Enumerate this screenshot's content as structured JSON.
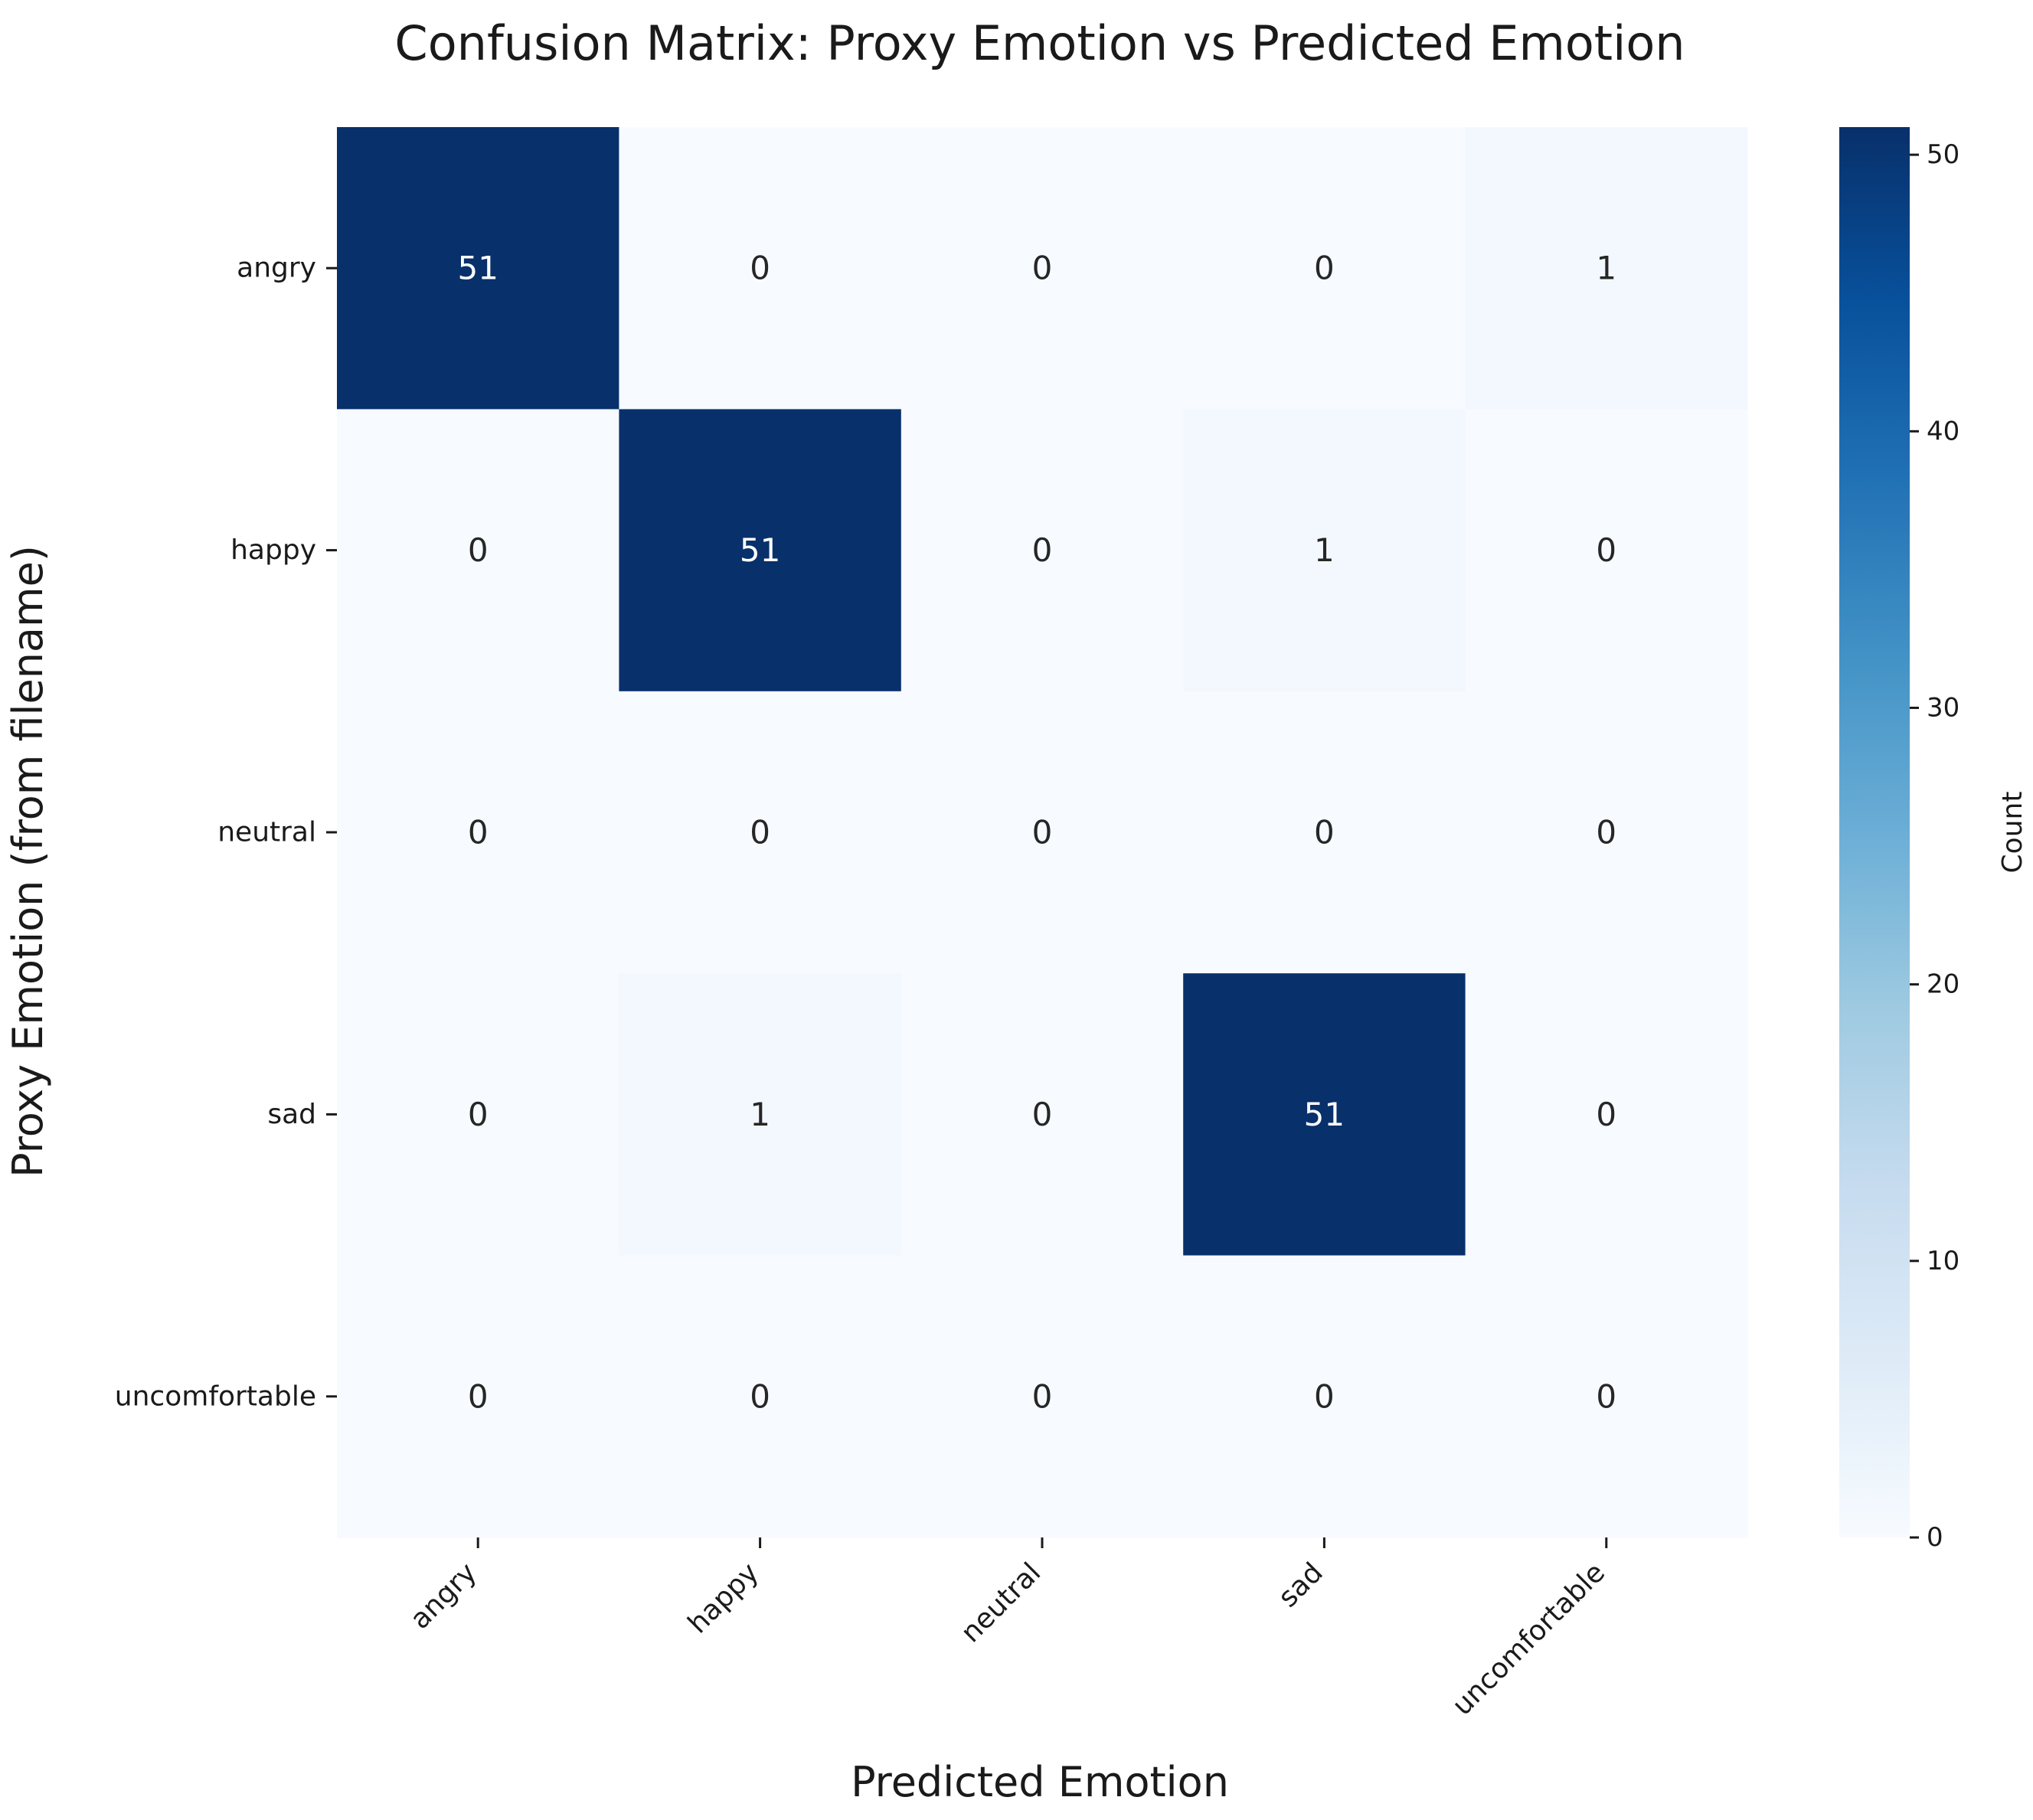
{
  "chart_data": {
    "type": "heatmap",
    "title": "Confusion Matrix: Proxy Emotion vs Predicted Emotion",
    "xlabel": "Predicted Emotion",
    "ylabel": "Proxy Emotion (from filename)",
    "x_categories": [
      "angry",
      "happy",
      "neutral",
      "sad",
      "uncomfortable"
    ],
    "y_categories": [
      "angry",
      "happy",
      "neutral",
      "sad",
      "uncomfortable"
    ],
    "values": [
      [
        51,
        0,
        0,
        0,
        1
      ],
      [
        0,
        51,
        0,
        1,
        0
      ],
      [
        0,
        0,
        0,
        0,
        0
      ],
      [
        0,
        1,
        0,
        51,
        0
      ],
      [
        0,
        0,
        0,
        0,
        0
      ]
    ],
    "colormap": "Blues",
    "colorbar": {
      "label": "Count",
      "range": [
        0,
        51
      ],
      "ticks": [
        0,
        10,
        20,
        30,
        40,
        50
      ]
    },
    "colors": {
      "low": "#f7fbff",
      "high": "#08306b",
      "light_text": "#ffffff",
      "dark_text": "#262626"
    }
  }
}
